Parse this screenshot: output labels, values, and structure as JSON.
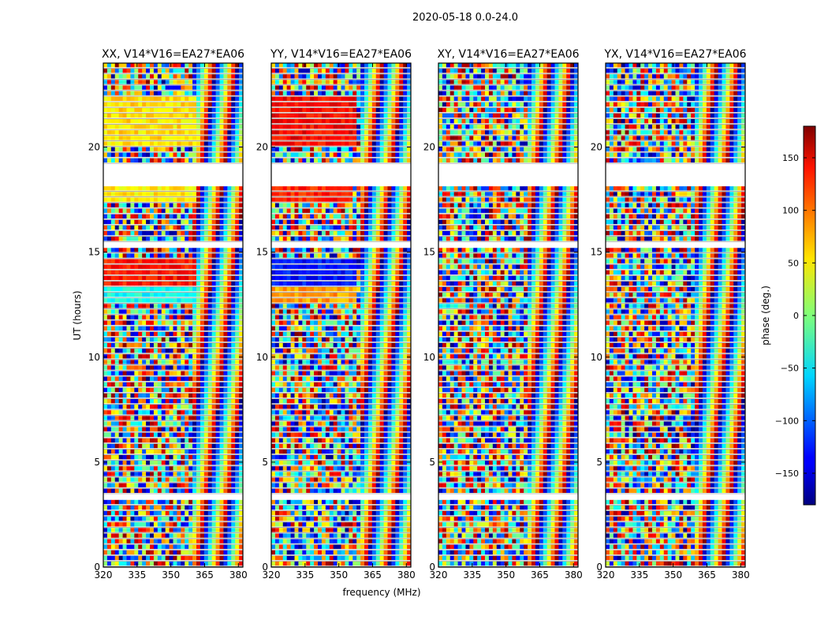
{
  "figure_title": "2020-05-18 0.0-24.0",
  "chart_data": [
    {
      "type": "heatmap",
      "title": "XX, V14*V16=EA27*EA06",
      "xlabel": "frequency (MHz)",
      "ylabel": "UT (hours)",
      "xlim": [
        320,
        382
      ],
      "ylim": [
        0,
        24
      ],
      "xticks": [
        320,
        335,
        350,
        365,
        380
      ],
      "yticks": [
        0,
        5,
        10,
        15,
        20
      ],
      "color_variable": "phase (deg.)",
      "strong_signal_blocks": [
        {
          "t_start": 17.3,
          "t_end": 18.2,
          "f_end": 361,
          "phase_deg": 50
        },
        {
          "t_start": 19.9,
          "t_end": 22.3,
          "f_end": 361,
          "phase_deg": 55
        },
        {
          "t_start": 13.3,
          "t_end": 14.7,
          "f_end": 361,
          "phase_deg": 130
        },
        {
          "t_start": 12.5,
          "t_end": 13.3,
          "f_end": 361,
          "phase_deg": -40
        }
      ]
    },
    {
      "type": "heatmap",
      "title": "YY, V14*V16=EA27*EA06",
      "xlabel": "frequency (MHz)",
      "ylabel": "UT (hours)",
      "xlim": [
        320,
        382
      ],
      "ylim": [
        0,
        24
      ],
      "xticks": [
        320,
        335,
        350,
        365,
        380
      ],
      "yticks": [
        0,
        5,
        10,
        15,
        20
      ],
      "color_variable": "phase (deg.)",
      "strong_signal_blocks": [
        {
          "t_start": 17.3,
          "t_end": 18.2,
          "f_end": 356,
          "phase_deg": 125
        },
        {
          "t_start": 19.9,
          "t_end": 22.3,
          "f_end": 358,
          "phase_deg": 135
        },
        {
          "t_start": 13.3,
          "t_end": 14.7,
          "f_end": 358,
          "phase_deg": -130
        },
        {
          "t_start": 12.5,
          "t_end": 13.3,
          "f_end": 358,
          "phase_deg": 80
        }
      ]
    },
    {
      "type": "heatmap",
      "title": "XY, V14*V16=EA27*EA06",
      "xlabel": "frequency (MHz)",
      "ylabel": "UT (hours)",
      "xlim": [
        320,
        382
      ],
      "ylim": [
        0,
        24
      ],
      "xticks": [
        320,
        335,
        350,
        365,
        380
      ],
      "yticks": [
        0,
        5,
        10,
        15,
        20
      ],
      "color_variable": "phase (deg.)",
      "strong_signal_blocks": []
    },
    {
      "type": "heatmap",
      "title": "YX, V14*V16=EA27*EA06",
      "xlabel": "frequency (MHz)",
      "ylabel": "UT (hours)",
      "xlim": [
        320,
        382
      ],
      "ylim": [
        0,
        24
      ],
      "xticks": [
        320,
        335,
        350,
        365,
        380
      ],
      "yticks": [
        0,
        5,
        10,
        15,
        20
      ],
      "color_variable": "phase (deg.)",
      "strong_signal_blocks": []
    }
  ],
  "shared_axes": {
    "xlabel": "frequency (MHz)",
    "ylabel": "UT (hours)",
    "flagged_gaps_ut_hours": [
      [
        18.2,
        19.3
      ],
      [
        15.2,
        15.6
      ],
      [
        3.3,
        3.5
      ],
      [
        2.6,
        2.8
      ]
    ]
  },
  "colorbar": {
    "label": "phase (deg.)",
    "range": [
      -180,
      180
    ],
    "ticks": [
      150,
      100,
      50,
      0,
      -50,
      -100,
      -150
    ],
    "tick_labels": [
      "150",
      "100",
      "50",
      "0",
      "−50",
      "−100",
      "−150"
    ],
    "colormap": "jet"
  }
}
